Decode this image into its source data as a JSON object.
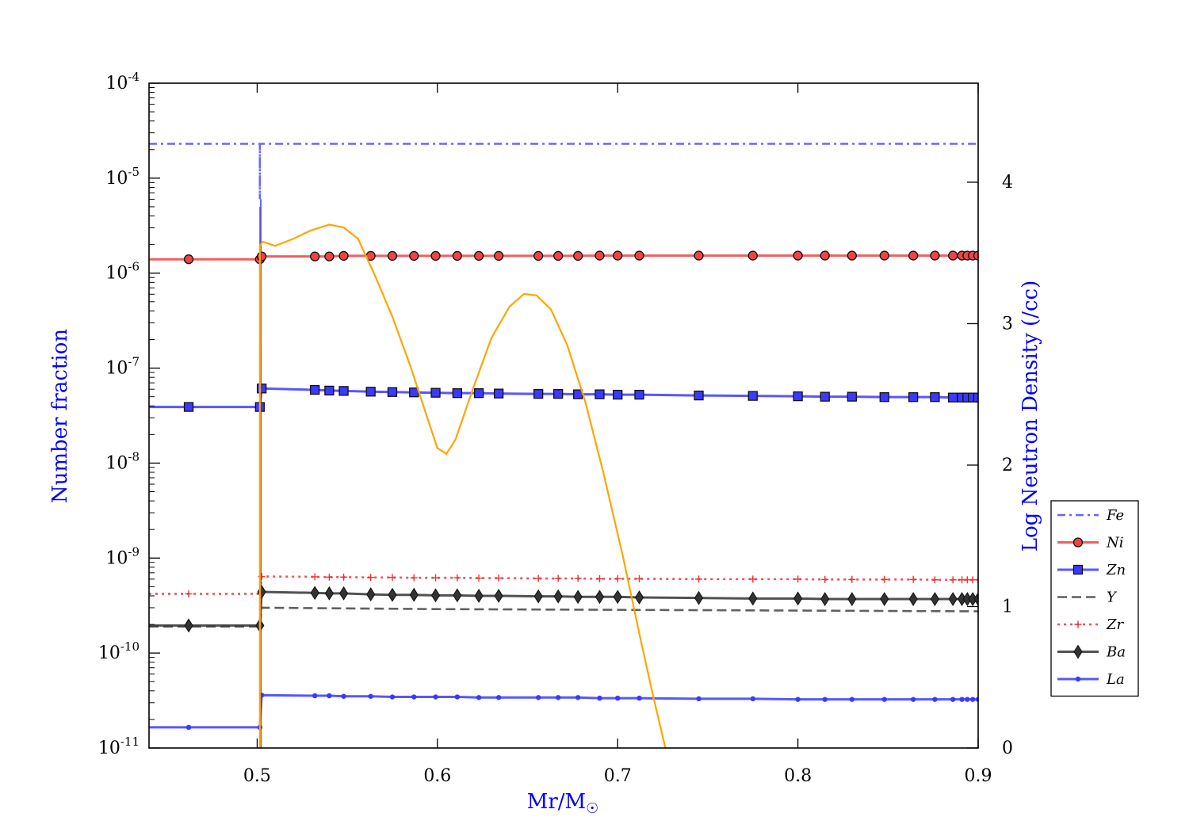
{
  "chart_data": {
    "type": "line",
    "title": "",
    "xlabel": "Mr/M",
    "xlabel_sub": "☉",
    "ylabel_left": "Number fraction",
    "ylabel_right": "Log Neutron Density (/cc)",
    "xlim": [
      0.44,
      0.9
    ],
    "ylim_left": [
      1e-11,
      0.0001
    ],
    "yscale_left": "log",
    "ylim_right": [
      0,
      4.7
    ],
    "x_ticks": [
      0.5,
      0.6,
      0.7,
      0.8,
      0.9
    ],
    "x_tick_labels": [
      "0.5",
      "0.6",
      "0.7",
      "0.8",
      "0.9"
    ],
    "y_left_ticks": [
      {
        "mantissa": "10",
        "exponent": "-4",
        "value": 0.0001
      },
      {
        "mantissa": "10",
        "exponent": "-5",
        "value": 1e-05
      },
      {
        "mantissa": "10",
        "exponent": "-6",
        "value": 1e-06
      },
      {
        "mantissa": "10",
        "exponent": "-7",
        "value": 1e-07
      },
      {
        "mantissa": "10",
        "exponent": "-8",
        "value": 1e-08
      },
      {
        "mantissa": "10",
        "exponent": "-9",
        "value": 1e-09
      },
      {
        "mantissa": "10",
        "exponent": "-10",
        "value": 1e-10
      },
      {
        "mantissa": "10",
        "exponent": "-11",
        "value": 1e-11
      }
    ],
    "y_right_ticks": [
      0,
      1,
      2,
      3,
      4
    ],
    "y_right_tick_labels": [
      "0",
      "1",
      "2",
      "3",
      "4"
    ],
    "legend_position": "right-outside",
    "series": [
      {
        "name": "Fe",
        "style": "dashdot",
        "color": "#4b4bff",
        "marker": "none",
        "points": [
          [
            0.44,
            2.3e-05
          ],
          [
            0.5015,
            2.3e-05
          ],
          [
            0.5015,
            6e-06
          ],
          [
            0.5015,
            2.3e-05
          ],
          [
            0.9,
            2.3e-05
          ]
        ]
      },
      {
        "name": "Ni",
        "style": "solid",
        "color": "#ee4444",
        "marker": "circle",
        "points": [
          [
            0.44,
            1.4e-06
          ],
          [
            0.462,
            1.4e-06
          ],
          [
            0.5015,
            1.4e-06
          ],
          [
            0.5025,
            1.5e-06
          ],
          [
            0.532,
            1.5e-06
          ],
          [
            0.54,
            1.5e-06
          ],
          [
            0.548,
            1.52e-06
          ],
          [
            0.563,
            1.52e-06
          ],
          [
            0.575,
            1.52e-06
          ],
          [
            0.587,
            1.52e-06
          ],
          [
            0.599,
            1.52e-06
          ],
          [
            0.611,
            1.52e-06
          ],
          [
            0.623,
            1.52e-06
          ],
          [
            0.634,
            1.52e-06
          ],
          [
            0.656,
            1.52e-06
          ],
          [
            0.667,
            1.52e-06
          ],
          [
            0.678,
            1.52e-06
          ],
          [
            0.69,
            1.53e-06
          ],
          [
            0.7,
            1.53e-06
          ],
          [
            0.712,
            1.53e-06
          ],
          [
            0.745,
            1.53e-06
          ],
          [
            0.775,
            1.53e-06
          ],
          [
            0.8,
            1.53e-06
          ],
          [
            0.815,
            1.53e-06
          ],
          [
            0.83,
            1.53e-06
          ],
          [
            0.848,
            1.53e-06
          ],
          [
            0.864,
            1.53e-06
          ],
          [
            0.876,
            1.53e-06
          ],
          [
            0.886,
            1.53e-06
          ],
          [
            0.891,
            1.53e-06
          ],
          [
            0.894,
            1.53e-06
          ],
          [
            0.897,
            1.53e-06
          ],
          [
            0.9,
            1.53e-06
          ]
        ]
      },
      {
        "name": "Zn",
        "style": "solid",
        "color": "#3a3aff",
        "marker": "square",
        "points": [
          [
            0.44,
            3.9e-08
          ],
          [
            0.462,
            3.9e-08
          ],
          [
            0.5015,
            3.9e-08
          ],
          [
            0.5025,
            6.1e-08
          ],
          [
            0.532,
            5.9e-08
          ],
          [
            0.54,
            5.8e-08
          ],
          [
            0.548,
            5.75e-08
          ],
          [
            0.563,
            5.65e-08
          ],
          [
            0.575,
            5.6e-08
          ],
          [
            0.587,
            5.55e-08
          ],
          [
            0.599,
            5.5e-08
          ],
          [
            0.611,
            5.45e-08
          ],
          [
            0.623,
            5.45e-08
          ],
          [
            0.634,
            5.4e-08
          ],
          [
            0.656,
            5.35e-08
          ],
          [
            0.667,
            5.35e-08
          ],
          [
            0.678,
            5.3e-08
          ],
          [
            0.69,
            5.3e-08
          ],
          [
            0.7,
            5.25e-08
          ],
          [
            0.712,
            5.25e-08
          ],
          [
            0.745,
            5.15e-08
          ],
          [
            0.775,
            5.1e-08
          ],
          [
            0.8,
            5.05e-08
          ],
          [
            0.815,
            5e-08
          ],
          [
            0.83,
            5e-08
          ],
          [
            0.848,
            4.95e-08
          ],
          [
            0.864,
            4.95e-08
          ],
          [
            0.876,
            4.95e-08
          ],
          [
            0.886,
            4.9e-08
          ],
          [
            0.891,
            4.9e-08
          ],
          [
            0.894,
            4.9e-08
          ],
          [
            0.897,
            4.9e-08
          ],
          [
            0.9,
            4.9e-08
          ]
        ]
      },
      {
        "name": "Y",
        "style": "dashed",
        "color": "#444444",
        "marker": "none",
        "points": [
          [
            0.44,
            1.9e-10
          ],
          [
            0.5015,
            1.9e-10
          ],
          [
            0.5025,
            3e-10
          ],
          [
            0.6,
            2.9e-10
          ],
          [
            0.7,
            2.85e-10
          ],
          [
            0.8,
            2.8e-10
          ],
          [
            0.9,
            2.75e-10
          ]
        ]
      },
      {
        "name": "Zr",
        "style": "dotted",
        "color": "#ee3333",
        "marker": "plus",
        "points": [
          [
            0.44,
            4.2e-10
          ],
          [
            0.462,
            4.2e-10
          ],
          [
            0.5015,
            4.2e-10
          ],
          [
            0.5025,
            6.4e-10
          ],
          [
            0.532,
            6.35e-10
          ],
          [
            0.54,
            6.3e-10
          ],
          [
            0.548,
            6.3e-10
          ],
          [
            0.563,
            6.25e-10
          ],
          [
            0.575,
            6.25e-10
          ],
          [
            0.587,
            6.2e-10
          ],
          [
            0.599,
            6.2e-10
          ],
          [
            0.611,
            6.2e-10
          ],
          [
            0.623,
            6.15e-10
          ],
          [
            0.634,
            6.15e-10
          ],
          [
            0.656,
            6.1e-10
          ],
          [
            0.667,
            6.1e-10
          ],
          [
            0.678,
            6.1e-10
          ],
          [
            0.69,
            6.05e-10
          ],
          [
            0.7,
            6.05e-10
          ],
          [
            0.712,
            6.05e-10
          ],
          [
            0.745,
            6e-10
          ],
          [
            0.775,
            6e-10
          ],
          [
            0.8,
            6e-10
          ],
          [
            0.815,
            5.95e-10
          ],
          [
            0.83,
            5.95e-10
          ],
          [
            0.848,
            5.95e-10
          ],
          [
            0.864,
            5.95e-10
          ],
          [
            0.876,
            5.9e-10
          ],
          [
            0.886,
            5.9e-10
          ],
          [
            0.891,
            5.9e-10
          ],
          [
            0.894,
            5.9e-10
          ],
          [
            0.897,
            5.9e-10
          ],
          [
            0.9,
            5.9e-10
          ]
        ]
      },
      {
        "name": "Ba",
        "style": "solid",
        "color": "#333333",
        "marker": "diamond",
        "points": [
          [
            0.44,
            1.95e-10
          ],
          [
            0.462,
            1.95e-10
          ],
          [
            0.5015,
            1.95e-10
          ],
          [
            0.5025,
            4.4e-10
          ],
          [
            0.532,
            4.3e-10
          ],
          [
            0.54,
            4.25e-10
          ],
          [
            0.548,
            4.25e-10
          ],
          [
            0.563,
            4.15e-10
          ],
          [
            0.575,
            4.1e-10
          ],
          [
            0.587,
            4.1e-10
          ],
          [
            0.599,
            4.05e-10
          ],
          [
            0.611,
            4.05e-10
          ],
          [
            0.623,
            4e-10
          ],
          [
            0.634,
            4e-10
          ],
          [
            0.656,
            3.95e-10
          ],
          [
            0.667,
            3.95e-10
          ],
          [
            0.678,
            3.9e-10
          ],
          [
            0.69,
            3.9e-10
          ],
          [
            0.7,
            3.9e-10
          ],
          [
            0.712,
            3.85e-10
          ],
          [
            0.745,
            3.8e-10
          ],
          [
            0.775,
            3.75e-10
          ],
          [
            0.8,
            3.75e-10
          ],
          [
            0.815,
            3.7e-10
          ],
          [
            0.83,
            3.7e-10
          ],
          [
            0.848,
            3.7e-10
          ],
          [
            0.864,
            3.7e-10
          ],
          [
            0.876,
            3.7e-10
          ],
          [
            0.886,
            3.7e-10
          ],
          [
            0.891,
            3.7e-10
          ],
          [
            0.894,
            3.7e-10
          ],
          [
            0.897,
            3.7e-10
          ],
          [
            0.9,
            3.7e-10
          ]
        ]
      },
      {
        "name": "La",
        "style": "solid",
        "color": "#3a3aff",
        "marker": "dot",
        "points": [
          [
            0.44,
            1.65e-11
          ],
          [
            0.462,
            1.65e-11
          ],
          [
            0.5015,
            1.65e-11
          ],
          [
            0.5025,
            3.6e-11
          ],
          [
            0.532,
            3.55e-11
          ],
          [
            0.54,
            3.55e-11
          ],
          [
            0.548,
            3.5e-11
          ],
          [
            0.563,
            3.5e-11
          ],
          [
            0.575,
            3.45e-11
          ],
          [
            0.587,
            3.45e-11
          ],
          [
            0.599,
            3.45e-11
          ],
          [
            0.611,
            3.45e-11
          ],
          [
            0.623,
            3.4e-11
          ],
          [
            0.634,
            3.4e-11
          ],
          [
            0.656,
            3.4e-11
          ],
          [
            0.667,
            3.4e-11
          ],
          [
            0.678,
            3.4e-11
          ],
          [
            0.69,
            3.35e-11
          ],
          [
            0.7,
            3.35e-11
          ],
          [
            0.712,
            3.35e-11
          ],
          [
            0.745,
            3.3e-11
          ],
          [
            0.775,
            3.3e-11
          ],
          [
            0.8,
            3.25e-11
          ],
          [
            0.815,
            3.25e-11
          ],
          [
            0.83,
            3.25e-11
          ],
          [
            0.848,
            3.25e-11
          ],
          [
            0.864,
            3.25e-11
          ],
          [
            0.876,
            3.25e-11
          ],
          [
            0.886,
            3.25e-11
          ],
          [
            0.891,
            3.25e-11
          ],
          [
            0.894,
            3.25e-11
          ],
          [
            0.897,
            3.25e-11
          ],
          [
            0.9,
            3.25e-11
          ]
        ]
      }
    ],
    "spike": {
      "x": 0.5015,
      "segments": [
        {
          "color": "#dd4444",
          "y_top": 5e-06
        },
        {
          "color": "#444444",
          "y_top": 1.5e-07
        },
        {
          "color": "#3a3aff",
          "y_top": 6e-06
        }
      ]
    },
    "neutron_density": {
      "name": "Log Neutron Density",
      "color": "#ffa500",
      "axis": "right",
      "points": [
        [
          0.5015,
          0
        ],
        [
          0.5015,
          3.55
        ],
        [
          0.503,
          3.58
        ],
        [
          0.51,
          3.55
        ],
        [
          0.52,
          3.6
        ],
        [
          0.53,
          3.66
        ],
        [
          0.54,
          3.7
        ],
        [
          0.548,
          3.68
        ],
        [
          0.556,
          3.6
        ],
        [
          0.565,
          3.35
        ],
        [
          0.575,
          3.05
        ],
        [
          0.585,
          2.7
        ],
        [
          0.594,
          2.35
        ],
        [
          0.6,
          2.12
        ],
        [
          0.605,
          2.08
        ],
        [
          0.61,
          2.18
        ],
        [
          0.62,
          2.55
        ],
        [
          0.63,
          2.9
        ],
        [
          0.64,
          3.12
        ],
        [
          0.648,
          3.21
        ],
        [
          0.655,
          3.2
        ],
        [
          0.663,
          3.1
        ],
        [
          0.672,
          2.85
        ],
        [
          0.682,
          2.45
        ],
        [
          0.692,
          1.95
        ],
        [
          0.703,
          1.35
        ],
        [
          0.713,
          0.75
        ],
        [
          0.72,
          0.35
        ],
        [
          0.7265,
          0
        ]
      ]
    }
  }
}
